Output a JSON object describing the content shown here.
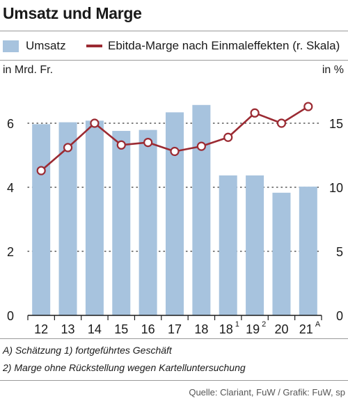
{
  "title": "Umsatz und Marge",
  "legend": {
    "bars": "Umsatz",
    "line": "Ebitda-Marge nach Einmaleffekten (r. Skala)"
  },
  "axes": {
    "left_unit": "in Mrd. Fr.",
    "right_unit": "in %"
  },
  "notes": {
    "line1": "A) Schätzung   1) fortgeführtes Geschäft",
    "line2": "2) Marge ohne Rückstellung wegen Kartelluntersuchung"
  },
  "source": "Quelle: Clariant, FuW / Grafik: FuW, sp",
  "colors": {
    "bar": "#a7c3de",
    "line": "#9b2a32",
    "marker_fill": "#ffffff"
  },
  "chart_data": {
    "type": "bar",
    "categories": [
      {
        "label": "12",
        "sup": ""
      },
      {
        "label": "13",
        "sup": ""
      },
      {
        "label": "14",
        "sup": ""
      },
      {
        "label": "15",
        "sup": ""
      },
      {
        "label": "16",
        "sup": ""
      },
      {
        "label": "17",
        "sup": ""
      },
      {
        "label": "18",
        "sup": ""
      },
      {
        "label": "18",
        "sup": "1"
      },
      {
        "label": "19",
        "sup": "2"
      },
      {
        "label": "20",
        "sup": ""
      },
      {
        "label": "21",
        "sup": "A"
      }
    ],
    "series": [
      {
        "name": "Umsatz",
        "type": "bar",
        "axis": "left",
        "values": [
          5.97,
          6.03,
          6.08,
          5.76,
          5.79,
          6.34,
          6.57,
          4.37,
          4.37,
          3.83,
          4.02
        ]
      },
      {
        "name": "Ebitda-Marge nach Einmaleffekten (r. Skala)",
        "type": "line",
        "axis": "right",
        "values": [
          11.3,
          13.1,
          15.0,
          13.3,
          13.5,
          12.8,
          13.2,
          13.9,
          15.8,
          15.0,
          16.3
        ]
      }
    ],
    "y_left": {
      "min": 0,
      "max": 7,
      "ticks": [
        0,
        2,
        4,
        6
      ]
    },
    "y_right": {
      "min": 0,
      "max": 17.5,
      "ticks": [
        0,
        5,
        10,
        15
      ]
    },
    "grid": "dotted at major ticks"
  }
}
